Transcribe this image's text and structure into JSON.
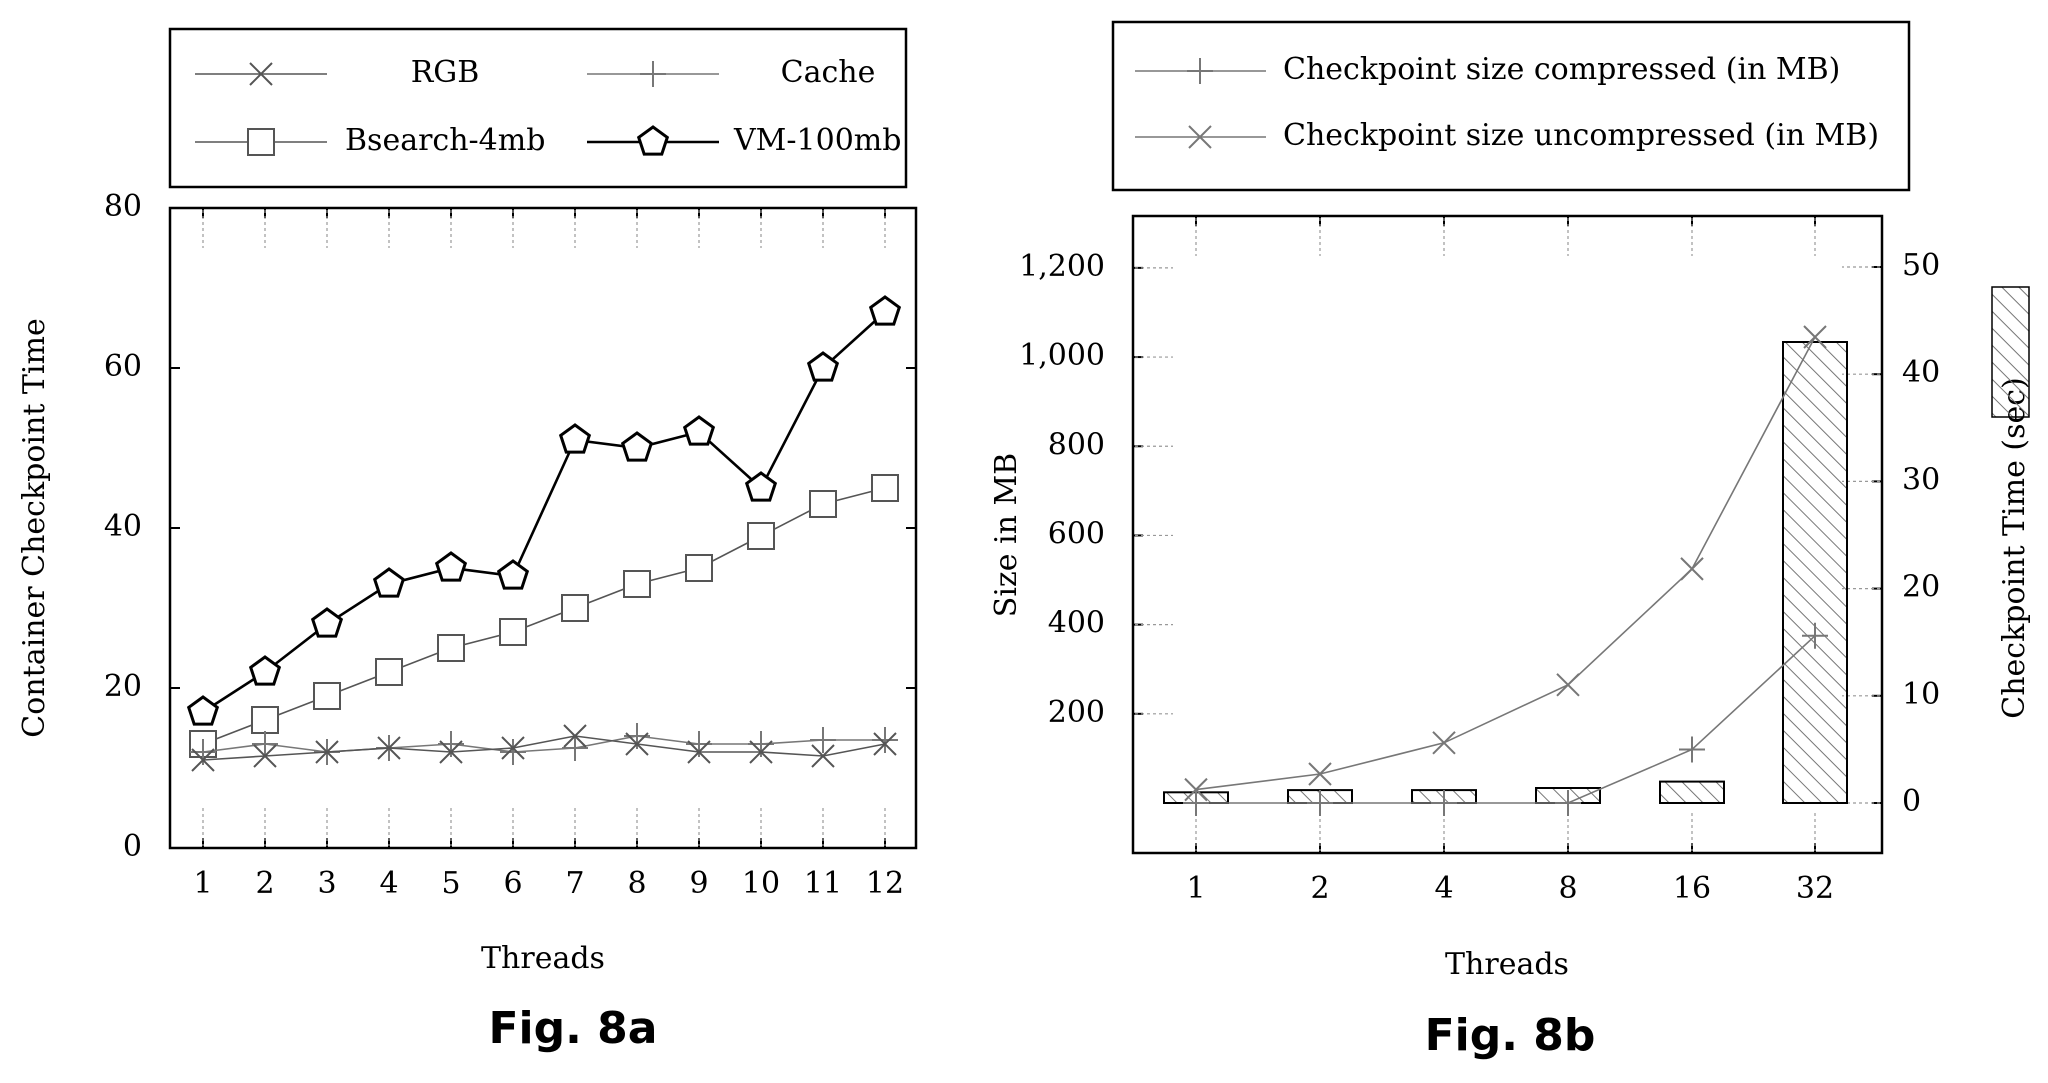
{
  "figures": {
    "a": {
      "caption": "Fig. 8a"
    },
    "b": {
      "caption": "Fig. 8b"
    }
  },
  "chart_data": [
    {
      "type": "line",
      "caption": "Fig. 8a",
      "xlabel": "Threads",
      "ylabel": "Container Checkpoint Time",
      "categories": [
        "1",
        "2",
        "3",
        "4",
        "5",
        "6",
        "7",
        "8",
        "9",
        "10",
        "11",
        "12"
      ],
      "ylim": [
        0,
        80
      ],
      "yticks": [
        "0",
        "20",
        "40",
        "60",
        "80"
      ],
      "grid": false,
      "legend_position": "top",
      "series": [
        {
          "name": "RGB",
          "marker": "x",
          "color": "#555555",
          "values": [
            11,
            11.5,
            12,
            12.5,
            12,
            12.5,
            14,
            13,
            12,
            12,
            11.5,
            13
          ]
        },
        {
          "name": "Cache",
          "marker": "plus",
          "color": "#777777",
          "values": [
            12,
            13,
            12,
            12.5,
            13,
            12,
            12.5,
            14,
            13,
            13,
            13.5,
            13.5
          ]
        },
        {
          "name": "Bsearch-4mb",
          "marker": "square",
          "color": "#555555",
          "values": [
            13,
            16,
            19,
            22,
            25,
            27,
            30,
            33,
            35,
            39,
            43,
            45
          ]
        },
        {
          "name": "VM-100mb",
          "marker": "pentagon",
          "color": "#000000",
          "values": [
            17,
            22,
            28,
            33,
            35,
            34,
            51,
            50,
            52,
            45,
            60,
            67
          ]
        }
      ]
    },
    {
      "type": "bar+line",
      "caption": "Fig. 8b",
      "xlabel": "Threads",
      "ylabel": "Size in MB",
      "y2label": "Checkpoint Time (sec)",
      "categories": [
        "1",
        "2",
        "4",
        "8",
        "16",
        "32"
      ],
      "ylim": [
        0,
        1300
      ],
      "yticks": [
        "200",
        "400",
        "600",
        "800",
        "1,000",
        "1,200"
      ],
      "y2lim": [
        0,
        54
      ],
      "y2ticks": [
        "0",
        "10",
        "20",
        "30",
        "40",
        "50"
      ],
      "grid": false,
      "legend_position": "top",
      "bars": {
        "name": "Checkpoint Time (sec)",
        "axis": "right",
        "pattern": "hatch",
        "values": [
          1,
          1.2,
          1.2,
          1.4,
          2,
          43
        ]
      },
      "series": [
        {
          "name": "Checkpoint size compressed (in MB)",
          "marker": "plus",
          "color": "#777777",
          "values": [
            0,
            0,
            0,
            0,
            120,
            375
          ]
        },
        {
          "name": "Checkpoint size uncompressed (in MB)",
          "marker": "x",
          "color": "#777777",
          "values": [
            30,
            65,
            135,
            265,
            525,
            1045
          ]
        }
      ]
    }
  ]
}
